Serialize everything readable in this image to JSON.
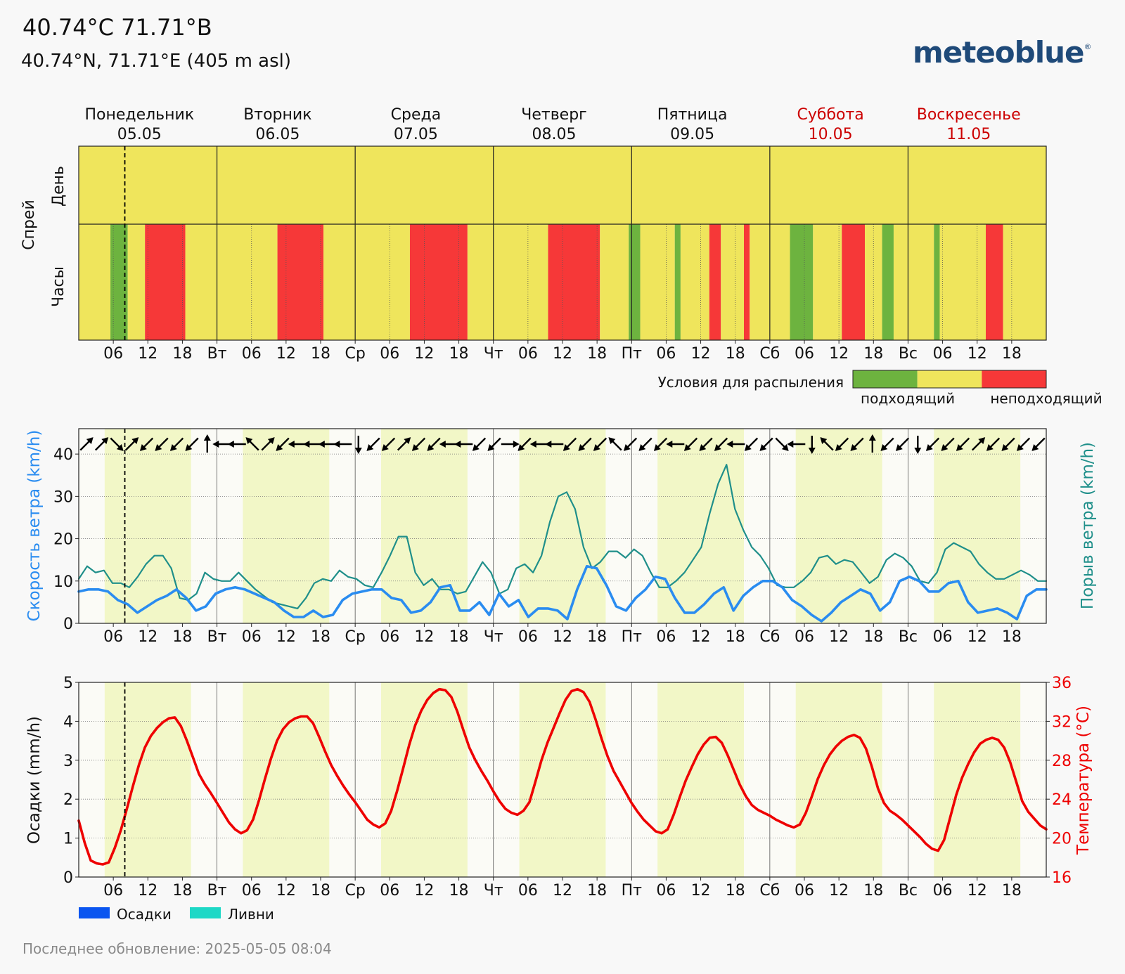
{
  "header": {
    "title": "40.74°C 71.71°В",
    "subtitle": "40.74°N, 71.71°E (405 m asl)",
    "logo": "meteoblue",
    "logo_mark": "®"
  },
  "footer": {
    "updated": "Последнее обновление: 2025-05-05 08:04"
  },
  "days": [
    {
      "name": "Понедельник",
      "date": "05.05",
      "weekend": false
    },
    {
      "name": "Вторник",
      "date": "06.05",
      "weekend": false
    },
    {
      "name": "Среда",
      "date": "07.05",
      "weekend": false
    },
    {
      "name": "Четверг",
      "date": "08.05",
      "weekend": false
    },
    {
      "name": "Пятница",
      "date": "09.05",
      "weekend": false
    },
    {
      "name": "Суббота",
      "date": "10.05",
      "weekend": true
    },
    {
      "name": "Воскресенье",
      "date": "11.05",
      "weekend": true
    }
  ],
  "x_ticks": [
    "",
    "06",
    "12",
    "18",
    "Вт",
    "06",
    "12",
    "18",
    "Ср",
    "06",
    "12",
    "18",
    "Чт",
    "06",
    "12",
    "18",
    "Пт",
    "06",
    "12",
    "18",
    "Сб",
    "06",
    "12",
    "18",
    "Вс",
    "06",
    "12",
    "18"
  ],
  "colors": {
    "weekend": "#cc0000",
    "suitable": "#6db33f",
    "neutral": "#efe55c",
    "unsuitable": "#f63838",
    "wind": "#2a8cf0",
    "gust": "#1f8f8a",
    "temperature": "#ee0000",
    "daylight": "#f2f7c7",
    "precip": "#0a55f0",
    "showers": "#1dd8c6"
  },
  "chart_data": [
    {
      "type": "heatmap",
      "ylabel": "Спрей",
      "row_labels": [
        "День",
        "Часы"
      ],
      "legend": {
        "title": "Условия для распыления",
        "labels": [
          "подходящий",
          "неподходящий"
        ]
      },
      "day_rating": [
        "neutral",
        "neutral",
        "neutral",
        "neutral",
        "neutral",
        "neutral",
        "neutral"
      ],
      "hourly_unit_hours": 1,
      "hourly_segments": [
        {
          "start": 0,
          "end": 5.5,
          "rating": "neutral"
        },
        {
          "start": 5.5,
          "end": 8.5,
          "rating": "suitable"
        },
        {
          "start": 8.5,
          "end": 11.5,
          "rating": "neutral"
        },
        {
          "start": 11.5,
          "end": 18.5,
          "rating": "unsuitable"
        },
        {
          "start": 18.5,
          "end": 34.5,
          "rating": "neutral"
        },
        {
          "start": 34.5,
          "end": 42.5,
          "rating": "unsuitable"
        },
        {
          "start": 42.5,
          "end": 57.5,
          "rating": "neutral"
        },
        {
          "start": 57.5,
          "end": 67.5,
          "rating": "unsuitable"
        },
        {
          "start": 67.5,
          "end": 81.5,
          "rating": "neutral"
        },
        {
          "start": 81.5,
          "end": 90.5,
          "rating": "unsuitable"
        },
        {
          "start": 90.5,
          "end": 95.5,
          "rating": "neutral"
        },
        {
          "start": 95.5,
          "end": 97.5,
          "rating": "suitable"
        },
        {
          "start": 97.5,
          "end": 103.5,
          "rating": "neutral"
        },
        {
          "start": 103.5,
          "end": 104.5,
          "rating": "suitable"
        },
        {
          "start": 104.5,
          "end": 109.5,
          "rating": "neutral"
        },
        {
          "start": 109.5,
          "end": 111.5,
          "rating": "unsuitable"
        },
        {
          "start": 111.5,
          "end": 115.5,
          "rating": "neutral"
        },
        {
          "start": 115.5,
          "end": 116.5,
          "rating": "unsuitable"
        },
        {
          "start": 116.5,
          "end": 123.5,
          "rating": "neutral"
        },
        {
          "start": 123.5,
          "end": 127.5,
          "rating": "suitable"
        },
        {
          "start": 127.5,
          "end": 132.5,
          "rating": "neutral"
        },
        {
          "start": 132.5,
          "end": 136.5,
          "rating": "unsuitable"
        },
        {
          "start": 136.5,
          "end": 139.5,
          "rating": "neutral"
        },
        {
          "start": 139.5,
          "end": 141.5,
          "rating": "suitable"
        },
        {
          "start": 141.5,
          "end": 148.5,
          "rating": "neutral"
        },
        {
          "start": 148.5,
          "end": 149.5,
          "rating": "suitable"
        },
        {
          "start": 149.5,
          "end": 157.5,
          "rating": "neutral"
        },
        {
          "start": 157.5,
          "end": 160.5,
          "rating": "unsuitable"
        },
        {
          "start": 160.5,
          "end": 168,
          "rating": "neutral"
        }
      ],
      "now_hour": 8
    },
    {
      "type": "line",
      "ylabel_left": "Скорость ветра (km/h)",
      "ylabel_right": "Порыв ветра (km/h)",
      "ylim": [
        0,
        46
      ],
      "yticks": [
        0,
        10,
        20,
        30,
        40
      ],
      "x_hour_step": 3,
      "series": [
        {
          "name": "Скорость ветра (km/h)",
          "values": [
            7.5,
            8,
            8,
            7.5,
            5.5,
            4.5,
            2.5,
            4,
            5.5,
            6.5,
            8,
            6,
            3,
            4,
            7,
            8,
            8.5,
            8,
            7,
            6,
            5,
            3,
            1.5,
            1.5,
            3,
            1.5,
            2,
            5.5,
            7,
            7.5,
            8,
            8,
            6,
            5.5,
            2.5,
            3,
            5,
            8.5,
            9,
            3,
            3,
            5,
            2,
            7,
            4,
            5.5,
            1.5,
            3.5,
            3.5,
            3,
            1,
            8,
            13.5,
            13,
            9,
            4,
            3,
            6,
            8,
            11,
            10.5,
            6,
            2.5,
            2.5,
            4.5,
            7,
            8.5,
            3,
            6.5,
            8.5,
            10,
            10,
            8.5,
            5.5,
            4,
            2,
            0.5,
            2.5,
            5,
            6.5,
            8,
            7,
            3,
            5,
            10,
            11,
            10,
            7.5,
            7.5,
            9.5,
            10,
            5,
            2.5,
            3,
            3.5,
            2.5,
            1,
            6.5,
            8,
            8
          ]
        },
        {
          "name": "Порыв ветра (km/h)",
          "values": [
            10.5,
            13.5,
            12,
            12.5,
            9.5,
            9.5,
            8.5,
            11,
            14,
            16,
            16,
            13,
            6,
            5.5,
            7,
            12,
            10.5,
            10,
            10,
            12,
            10,
            8,
            6.5,
            5,
            4.5,
            4,
            3.5,
            6,
            9.5,
            10.5,
            10,
            12.5,
            11,
            10.5,
            9,
            8.5,
            12,
            16,
            20.5,
            20.5,
            12,
            9,
            10.5,
            8,
            8,
            7,
            7.5,
            11,
            14.5,
            12,
            7,
            8,
            13,
            14,
            12,
            16,
            24,
            30,
            31,
            27,
            18,
            13,
            14.5,
            17,
            17,
            15.5,
            17.5,
            16,
            12,
            8.5,
            8.5,
            10,
            12,
            15,
            18,
            26,
            33,
            37.5,
            27,
            22,
            18,
            16,
            13,
            9,
            8.5,
            8.5,
            10,
            12,
            15.5,
            16,
            14,
            15,
            14.5,
            12,
            9.5,
            11,
            15,
            16.5,
            15.5,
            13.5,
            10,
            9.5,
            12,
            17.5,
            19,
            18,
            17,
            14,
            12,
            10.5,
            10.5,
            11.5,
            12.5,
            11.5,
            10,
            10
          ]
        }
      ],
      "wind_direction_deg": [
        225,
        225,
        315,
        225,
        45,
        45,
        45,
        45,
        180,
        90,
        90,
        135,
        225,
        45,
        90,
        90,
        90,
        90,
        0,
        45,
        45,
        225,
        45,
        45,
        90,
        90,
        45,
        45,
        270,
        45,
        90,
        90,
        45,
        45,
        45,
        135,
        45,
        45,
        45,
        90,
        45,
        45,
        45,
        90,
        45,
        45,
        315,
        90,
        0,
        135,
        45,
        45,
        180,
        45,
        45,
        0,
        45,
        45,
        45,
        225,
        45,
        45,
        45,
        45
      ]
    },
    {
      "type": "line",
      "ylabel_left": "Осадки (mm/h)",
      "ylabel_right": "Температура (°C)",
      "ylim_left": [
        0,
        5
      ],
      "ylim_right": [
        16,
        36
      ],
      "yticks_left": [
        0,
        1,
        2,
        3,
        4,
        5
      ],
      "yticks_right": [
        16,
        20,
        24,
        28,
        32,
        36
      ],
      "legend": [
        "Осадки",
        "Ливни"
      ],
      "x_hour_step": 1,
      "series": [
        {
          "name": "Температура (°C)",
          "values": [
            21.8,
            19.5,
            17.7,
            17.4,
            17.3,
            17.5,
            19,
            20.8,
            23,
            25.3,
            27.5,
            29.3,
            30.5,
            31.3,
            31.9,
            32.3,
            32.4,
            31.5,
            30,
            28.3,
            26.6,
            25.5,
            24.6,
            23.6,
            22.6,
            21.6,
            20.9,
            20.5,
            20.8,
            21.9,
            23.9,
            26.1,
            28.2,
            30,
            31.2,
            31.9,
            32.3,
            32.5,
            32.5,
            31.8,
            30.4,
            28.9,
            27.5,
            26.4,
            25.4,
            24.5,
            23.7,
            22.8,
            21.9,
            21.4,
            21.1,
            21.5,
            22.8,
            24.9,
            27.2,
            29.6,
            31.6,
            33.1,
            34.2,
            34.9,
            35.3,
            35.2,
            34.5,
            33,
            31.1,
            29.3,
            28,
            26.9,
            25.9,
            24.8,
            23.8,
            23,
            22.6,
            22.4,
            22.8,
            23.7,
            25.8,
            28,
            29.8,
            31.3,
            32.8,
            34.2,
            35.1,
            35.3,
            35,
            34,
            32.2,
            30.2,
            28.4,
            26.9,
            25.8,
            24.7,
            23.6,
            22.7,
            21.9,
            21.3,
            20.7,
            20.5,
            20.9,
            22.4,
            24.2,
            25.9,
            27.3,
            28.6,
            29.6,
            30.3,
            30.4,
            29.8,
            28.5,
            27,
            25.5,
            24.3,
            23.4,
            22.9,
            22.6,
            22.3,
            21.9,
            21.6,
            21.3,
            21.1,
            21.4,
            22.6,
            24.3,
            26.1,
            27.5,
            28.6,
            29.4,
            30,
            30.4,
            30.6,
            30.3,
            29.2,
            27.3,
            25.1,
            23.6,
            22.8,
            22.4,
            21.9,
            21.3,
            20.7,
            20.1,
            19.4,
            18.9,
            18.7,
            19.8,
            22.1,
            24.4,
            26.2,
            27.6,
            28.8,
            29.7,
            30.1,
            30.3,
            30.1,
            29.3,
            27.8,
            25.8,
            23.8,
            22.7,
            22.0,
            21.3,
            20.9
          ]
        },
        {
          "name": "Осадки",
          "values": []
        },
        {
          "name": "Ливни",
          "values": []
        }
      ],
      "now_hour": 8
    }
  ]
}
